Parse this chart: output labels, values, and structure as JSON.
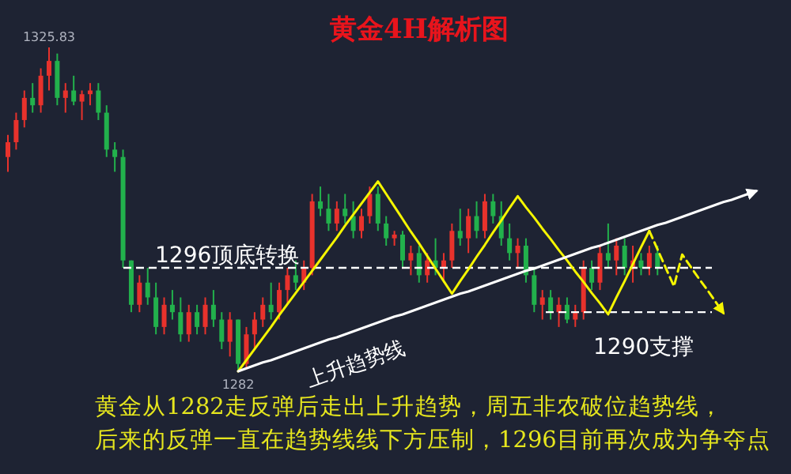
{
  "chart_data": {
    "type": "candlestick",
    "title": "黄金4H解析图",
    "categories": [
      null,
      null,
      null,
      null,
      null,
      null,
      null,
      null,
      null,
      null,
      null,
      null,
      null,
      null,
      null,
      null,
      null,
      null,
      null,
      null,
      null,
      null,
      null,
      null,
      null,
      null,
      null,
      null,
      null,
      null,
      null,
      null,
      null,
      null,
      null,
      null,
      null,
      null,
      null,
      null,
      null,
      null,
      null,
      null,
      null,
      null,
      null,
      null,
      null,
      null,
      null,
      null,
      null,
      null,
      null,
      null,
      null,
      null,
      null,
      null,
      null,
      null,
      null,
      null,
      null,
      null,
      null,
      null,
      null,
      null,
      null,
      null,
      null,
      null,
      null,
      null,
      null,
      null,
      null,
      null,
      null,
      null,
      null,
      null,
      null,
      null,
      null,
      null,
      null,
      null,
      null,
      null
    ],
    "ohlc": [
      [
        1311,
        1314,
        1309,
        1313
      ],
      [
        1313,
        1317,
        1312,
        1316
      ],
      [
        1316,
        1320,
        1315,
        1319
      ],
      [
        1319,
        1321,
        1317,
        1318
      ],
      [
        1318,
        1323,
        1317,
        1322
      ],
      [
        1322,
        1325.83,
        1320,
        1324
      ],
      [
        1324,
        1325,
        1318,
        1319
      ],
      [
        1319,
        1321,
        1317,
        1320
      ],
      [
        1320,
        1322,
        1318,
        1318.5
      ],
      [
        1318.5,
        1320,
        1316,
        1319.5
      ],
      [
        1319.5,
        1321,
        1318,
        1320
      ],
      [
        1320,
        1321,
        1316,
        1317
      ],
      [
        1317,
        1318,
        1311,
        1312
      ],
      [
        1312,
        1313,
        1309,
        1311
      ],
      [
        1311,
        1312,
        1296,
        1297
      ],
      [
        1297,
        1297,
        1290,
        1291
      ],
      [
        1291,
        1295,
        1290,
        1294
      ],
      [
        1294,
        1296,
        1291,
        1292
      ],
      [
        1292,
        1294,
        1287,
        1288
      ],
      [
        1288,
        1292,
        1287,
        1291
      ],
      [
        1291,
        1293,
        1289,
        1290
      ],
      [
        1290,
        1292,
        1286,
        1287
      ],
      [
        1287,
        1291,
        1286,
        1290
      ],
      [
        1290,
        1291,
        1287,
        1288
      ],
      [
        1288,
        1292,
        1287,
        1291
      ],
      [
        1291,
        1293,
        1288,
        1289
      ],
      [
        1289,
        1290,
        1285,
        1286
      ],
      [
        1286,
        1290,
        1284,
        1289
      ],
      [
        1289,
        1289,
        1282,
        1283
      ],
      [
        1283,
        1288,
        1282.5,
        1287
      ],
      [
        1287,
        1290,
        1285,
        1289
      ],
      [
        1289,
        1292,
        1288,
        1291
      ],
      [
        1291,
        1294,
        1289,
        1290
      ],
      [
        1290,
        1294,
        1289,
        1293
      ],
      [
        1293,
        1296,
        1291,
        1295
      ],
      [
        1295,
        1297,
        1293,
        1294
      ],
      [
        1294,
        1297,
        1293,
        1296
      ],
      [
        1296,
        1306,
        1295,
        1305
      ],
      [
        1305,
        1307,
        1303,
        1304
      ],
      [
        1304,
        1306,
        1301,
        1302
      ],
      [
        1302,
        1305,
        1301,
        1304
      ],
      [
        1304,
        1306,
        1302,
        1303
      ],
      [
        1303,
        1305,
        1300,
        1301
      ],
      [
        1301,
        1304,
        1300,
        1303
      ],
      [
        1303,
        1307,
        1302,
        1306
      ],
      [
        1306,
        1307,
        1301,
        1302
      ],
      [
        1302,
        1303,
        1299,
        1300
      ],
      [
        1300,
        1301,
        1299,
        1300.5
      ],
      [
        1300.5,
        1301,
        1296,
        1297
      ],
      [
        1297,
        1299,
        1295,
        1298
      ],
      [
        1298,
        1299,
        1294,
        1295
      ],
      [
        1295,
        1298,
        1294,
        1297
      ],
      [
        1297,
        1300,
        1295,
        1296
      ],
      [
        1296,
        1298,
        1294,
        1297
      ],
      [
        1297,
        1302,
        1296,
        1301
      ],
      [
        1301,
        1304,
        1299,
        1300
      ],
      [
        1300,
        1304,
        1298,
        1303
      ],
      [
        1303,
        1305,
        1300,
        1301
      ],
      [
        1301,
        1306,
        1300,
        1305
      ],
      [
        1305,
        1306,
        1302,
        1303
      ],
      [
        1303,
        1305,
        1299,
        1300
      ],
      [
        1300,
        1302,
        1297,
        1298
      ],
      [
        1298,
        1300,
        1296,
        1299
      ],
      [
        1299,
        1300,
        1294,
        1295
      ],
      [
        1295,
        1296,
        1290,
        1291
      ],
      [
        1291,
        1293,
        1289,
        1292
      ],
      [
        1292,
        1293,
        1289,
        1290
      ],
      [
        1290,
        1292,
        1288,
        1291
      ],
      [
        1291,
        1292,
        1288.5,
        1289
      ],
      [
        1289,
        1291,
        1288,
        1290
      ],
      [
        1290,
        1297,
        1289,
        1296
      ],
      [
        1296,
        1297,
        1293,
        1294
      ],
      [
        1294,
        1299,
        1293,
        1298
      ],
      [
        1298,
        1302,
        1296,
        1297
      ],
      [
        1297,
        1300,
        1295,
        1299
      ],
      [
        1299,
        1300,
        1295,
        1296
      ],
      [
        1296,
        1299,
        1294,
        1297
      ],
      [
        1297,
        1298,
        1295,
        1296
      ],
      [
        1296,
        1299,
        1295,
        1298
      ],
      [
        1298,
        1299,
        1295,
        1296
      ],
      null,
      null,
      null,
      null,
      null,
      null,
      null,
      null,
      null,
      null,
      null,
      null
    ],
    "colors": [
      "#e8322c",
      "#e8322c",
      "#e8322c",
      "#22b14c",
      "#e8322c",
      "#e8322c",
      "#22b14c",
      "#e8322c",
      "#22b14c",
      "#e8322c",
      "#e8322c",
      "#22b14c",
      "#22b14c",
      "#22b14c",
      "#22b14c",
      "#22b14c",
      "#e8322c",
      "#22b14c",
      "#22b14c",
      "#e8322c",
      "#22b14c",
      "#22b14c",
      "#e8322c",
      "#22b14c",
      "#e8322c",
      "#22b14c",
      "#22b14c",
      "#e8322c",
      "#22b14c",
      "#e8322c",
      "#e8322c",
      "#e8322c",
      "#22b14c",
      "#e8322c",
      "#e8322c",
      "#22b14c",
      "#e8322c",
      "#e8322c",
      "#22b14c",
      "#22b14c",
      "#e8322c",
      "#22b14c",
      "#22b14c",
      "#e8322c",
      "#e8322c",
      "#22b14c",
      "#22b14c",
      "#e8322c",
      "#22b14c",
      "#e8322c",
      "#22b14c",
      "#e8322c",
      "#22b14c",
      "#e8322c",
      "#e8322c",
      "#22b14c",
      "#e8322c",
      "#22b14c",
      "#e8322c",
      "#22b14c",
      "#22b14c",
      "#22b14c",
      "#e8322c",
      "#22b14c",
      "#22b14c",
      "#e8322c",
      "#22b14c",
      "#e8322c",
      "#22b14c",
      "#e8322c",
      "#e8322c",
      "#22b14c",
      "#e8322c",
      "#22b14c",
      "#e8322c",
      "#22b14c",
      "#e8322c",
      "#22b14c",
      "#e8322c",
      "#22b14c",
      null,
      null,
      null,
      null,
      null,
      null,
      null,
      null,
      null,
      null,
      null,
      null
    ],
    "series": [
      {
        "type": "line",
        "color": "#f5f500",
        "values": [
          null,
          null,
          null,
          null,
          null,
          null,
          null,
          null,
          null,
          null,
          null,
          null,
          null,
          null,
          null,
          null,
          null,
          null,
          null,
          null,
          null,
          null,
          null,
          null,
          null,
          null,
          null,
          null,
          1282,
          1283.5,
          1285,
          1286.5,
          1288,
          1289.6,
          1291.1,
          1292.6,
          1294.1,
          1295.6,
          1297.1,
          1298.6,
          1300.1,
          1301.7,
          1303.2,
          1304.7,
          1306.2,
          1307.7,
          1306,
          1304.3,
          1302.6,
          1300.9,
          1299.3,
          1297.6,
          1295.9,
          1294.2,
          1292.5,
          1294.2,
          1295.8,
          1297.5,
          1299.1,
          1300.8,
          1302.4,
          1304.1,
          1305.7,
          1304.2,
          1302.8,
          1301.3,
          1299.9,
          1298.4,
          1297,
          1295.5,
          1294.1,
          1292.6,
          1291.2,
          1289.7,
          1292,
          1294.2,
          1296.5,
          1298.8,
          1301,
          null,
          null,
          null,
          null,
          null,
          null,
          null,
          null,
          null,
          null,
          null,
          null,
          null
        ]
      },
      {
        "type": "line",
        "color": "#f5f500",
        "line_style": "dashed",
        "values": [
          null,
          null,
          null,
          null,
          null,
          null,
          null,
          null,
          null,
          null,
          null,
          null,
          null,
          null,
          null,
          null,
          null,
          null,
          null,
          null,
          null,
          null,
          null,
          null,
          null,
          null,
          null,
          null,
          null,
          null,
          null,
          null,
          null,
          null,
          null,
          null,
          null,
          null,
          null,
          null,
          null,
          null,
          null,
          null,
          null,
          null,
          null,
          null,
          null,
          null,
          null,
          null,
          null,
          null,
          null,
          null,
          null,
          null,
          null,
          null,
          null,
          null,
          null,
          null,
          null,
          null,
          null,
          null,
          null,
          null,
          null,
          null,
          null,
          null,
          null,
          null,
          null,
          null,
          1301,
          1298.5,
          1296,
          1293.5,
          1297.8,
          1296.2,
          1294.6,
          1293.1,
          1291.5,
          1289.9,
          null,
          null,
          null,
          null
        ]
      },
      {
        "type": "line",
        "name": "上升趋势线",
        "color": "#ffffff",
        "values": [
          null,
          null,
          null,
          null,
          null,
          null,
          null,
          null,
          null,
          null,
          null,
          null,
          null,
          null,
          null,
          null,
          null,
          null,
          null,
          null,
          null,
          null,
          null,
          null,
          null,
          null,
          null,
          null,
          1282,
          1282.4,
          1282.8,
          1283.2,
          1283.5,
          1283.9,
          1284.3,
          1284.7,
          1285.1,
          1285.5,
          1285.9,
          1286.3,
          1286.6,
          1287,
          1287.4,
          1287.8,
          1288.2,
          1288.6,
          1289,
          1289.4,
          1289.7,
          1290.1,
          1290.5,
          1290.9,
          1291.3,
          1291.7,
          1292.1,
          1292.5,
          1292.8,
          1293.2,
          1293.6,
          1294,
          1294.4,
          1294.8,
          1295.2,
          1295.6,
          1295.9,
          1296.3,
          1296.7,
          1297.1,
          1297.5,
          1297.9,
          1298.3,
          1298.7,
          1299,
          1299.4,
          1299.8,
          1300.2,
          1300.6,
          1301,
          1301.4,
          1301.8,
          1302.1,
          1302.5,
          1302.9,
          1303.3,
          1303.7,
          1304.1,
          1304.5,
          1304.9,
          1305.2,
          1305.6,
          1306,
          1306.4
        ]
      }
    ],
    "ref_lines": [
      {
        "axis": "y",
        "value": 1296,
        "label": "1296顶底转换",
        "color": "#ffffff",
        "line_style": "dashed"
      },
      {
        "axis": "y",
        "value": 1290,
        "label": "1290支撑",
        "color": "#ffffff",
        "line_style": "dashed"
      }
    ],
    "annotations": [
      {
        "text": "1325.83",
        "y": 1325.83
      },
      {
        "text": "1282",
        "y": 1282
      },
      "黄金从1282走反弹后走出上升趋势，周五非农破位趋势线，",
      "后来的反弹一直在趋势线线下方压制，1296目前再次成为争夺点"
    ]
  }
}
